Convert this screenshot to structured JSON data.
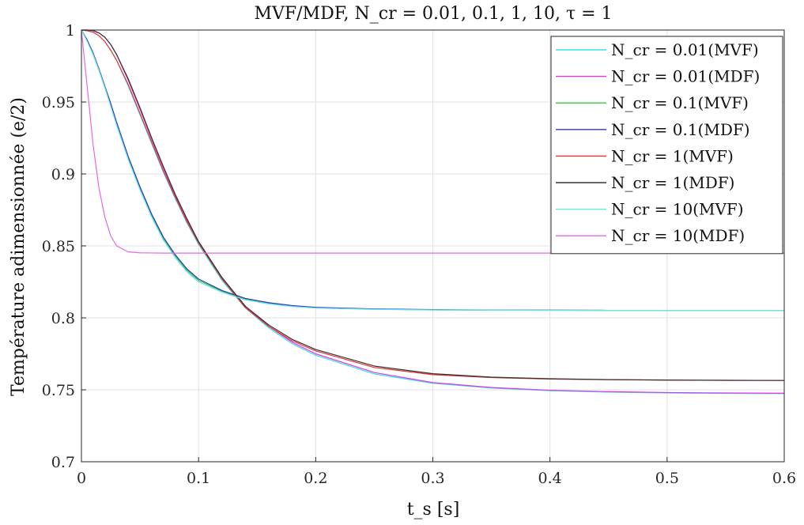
{
  "chart_data": {
    "type": "line",
    "title": "MVF/MDF, N_cr = 0.01, 0.1, 1, 10, τ = 1",
    "xlabel": "t_s [s]",
    "ylabel": "Température adimensionnée (e/2)",
    "xlim": [
      0,
      0.6
    ],
    "ylim": [
      0.7,
      1.0
    ],
    "xticks": [
      "0",
      "0.1",
      "0.2",
      "0.3",
      "0.4",
      "0.5",
      "0.6"
    ],
    "yticks": [
      "0.7",
      "0.75",
      "0.8",
      "0.85",
      "0.9",
      "0.95",
      "1"
    ],
    "grid": true,
    "legend_position": "top-right",
    "x": [
      0,
      0.005,
      0.01,
      0.015,
      0.02,
      0.025,
      0.03,
      0.04,
      0.05,
      0.06,
      0.07,
      0.08,
      0.09,
      0.1,
      0.12,
      0.14,
      0.16,
      0.18,
      0.2,
      0.25,
      0.3,
      0.35,
      0.4,
      0.45,
      0.5,
      0.55,
      0.6
    ],
    "series": [
      {
        "name": "N_cr = 0.01(MVF)",
        "color": "#33e6e6",
        "values": [
          1.0,
          0.9995,
          0.9985,
          0.996,
          0.992,
          0.986,
          0.979,
          0.961,
          0.941,
          0.921,
          0.901,
          0.883,
          0.866,
          0.851,
          0.826,
          0.807,
          0.793,
          0.782,
          0.774,
          0.761,
          0.7545,
          0.7512,
          0.7494,
          0.7484,
          0.7478,
          0.7475,
          0.7474
        ]
      },
      {
        "name": "N_cr = 0.01(MDF)",
        "color": "#e633e6",
        "values": [
          1.0,
          1.0,
          0.9995,
          0.998,
          0.995,
          0.99,
          0.983,
          0.965,
          0.945,
          0.924,
          0.904,
          0.885,
          0.868,
          0.853,
          0.828,
          0.808,
          0.794,
          0.783,
          0.775,
          0.762,
          0.755,
          0.7516,
          0.7497,
          0.7487,
          0.7481,
          0.7478,
          0.7476
        ]
      },
      {
        "name": "N_cr = 0.1(MVF)",
        "color": "#33cc33",
        "values": [
          1.0,
          0.992,
          0.983,
          0.972,
          0.96,
          0.948,
          0.935,
          0.911,
          0.89,
          0.871,
          0.855,
          0.843,
          0.833,
          0.826,
          0.8185,
          0.813,
          0.81,
          0.808,
          0.807,
          0.806,
          0.8055,
          0.8053,
          0.8053,
          0.8052,
          0.8052,
          0.8052,
          0.8052
        ]
      },
      {
        "name": "N_cr = 0.1(MDF)",
        "color": "#3333cc",
        "values": [
          1.0,
          0.993,
          0.984,
          0.973,
          0.961,
          0.949,
          0.936,
          0.912,
          0.891,
          0.872,
          0.856,
          0.844,
          0.834,
          0.827,
          0.819,
          0.8135,
          0.8105,
          0.8085,
          0.8073,
          0.8062,
          0.8057,
          0.8054,
          0.8053,
          0.8052,
          0.8052,
          0.8052,
          0.8052
        ]
      },
      {
        "name": "N_cr = 1(MVF)",
        "color": "#e63333",
        "values": [
          1.0,
          0.9995,
          0.9985,
          0.996,
          0.992,
          0.986,
          0.979,
          0.962,
          0.942,
          0.922,
          0.902,
          0.884,
          0.867,
          0.852,
          0.827,
          0.807,
          0.794,
          0.784,
          0.777,
          0.7655,
          0.7605,
          0.7585,
          0.7575,
          0.757,
          0.7567,
          0.7566,
          0.7565
        ]
      },
      {
        "name": "N_cr = 1(MDF)",
        "color": "#333333",
        "values": [
          1.0,
          1.0,
          0.9997,
          0.998,
          0.995,
          0.99,
          0.983,
          0.966,
          0.946,
          0.925,
          0.905,
          0.886,
          0.869,
          0.853,
          0.828,
          0.808,
          0.795,
          0.785,
          0.778,
          0.7665,
          0.7612,
          0.7588,
          0.7577,
          0.7571,
          0.7568,
          0.7566,
          0.7565
        ]
      },
      {
        "name": "N_cr = 10(MVF)",
        "color": "#66e6e6",
        "values": [
          1.0,
          0.992,
          0.983,
          0.972,
          0.96,
          0.947,
          0.934,
          0.91,
          0.889,
          0.87,
          0.854,
          0.842,
          0.832,
          0.825,
          0.8178,
          0.8125,
          0.8097,
          0.8079,
          0.8068,
          0.8059,
          0.8055,
          0.8053,
          0.8052,
          0.8052,
          0.8052,
          0.8052,
          0.8052
        ]
      },
      {
        "name": "N_cr = 10(MDF)",
        "color": "#e666e6",
        "values": [
          1.0,
          0.96,
          0.92,
          0.89,
          0.87,
          0.857,
          0.85,
          0.8458,
          0.8452,
          0.8451,
          0.845,
          0.845,
          0.845,
          0.845,
          0.845,
          0.845,
          0.845,
          0.845,
          0.845,
          0.845,
          0.845,
          0.845,
          0.845,
          0.845,
          0.845,
          0.845,
          0.845
        ]
      }
    ]
  }
}
